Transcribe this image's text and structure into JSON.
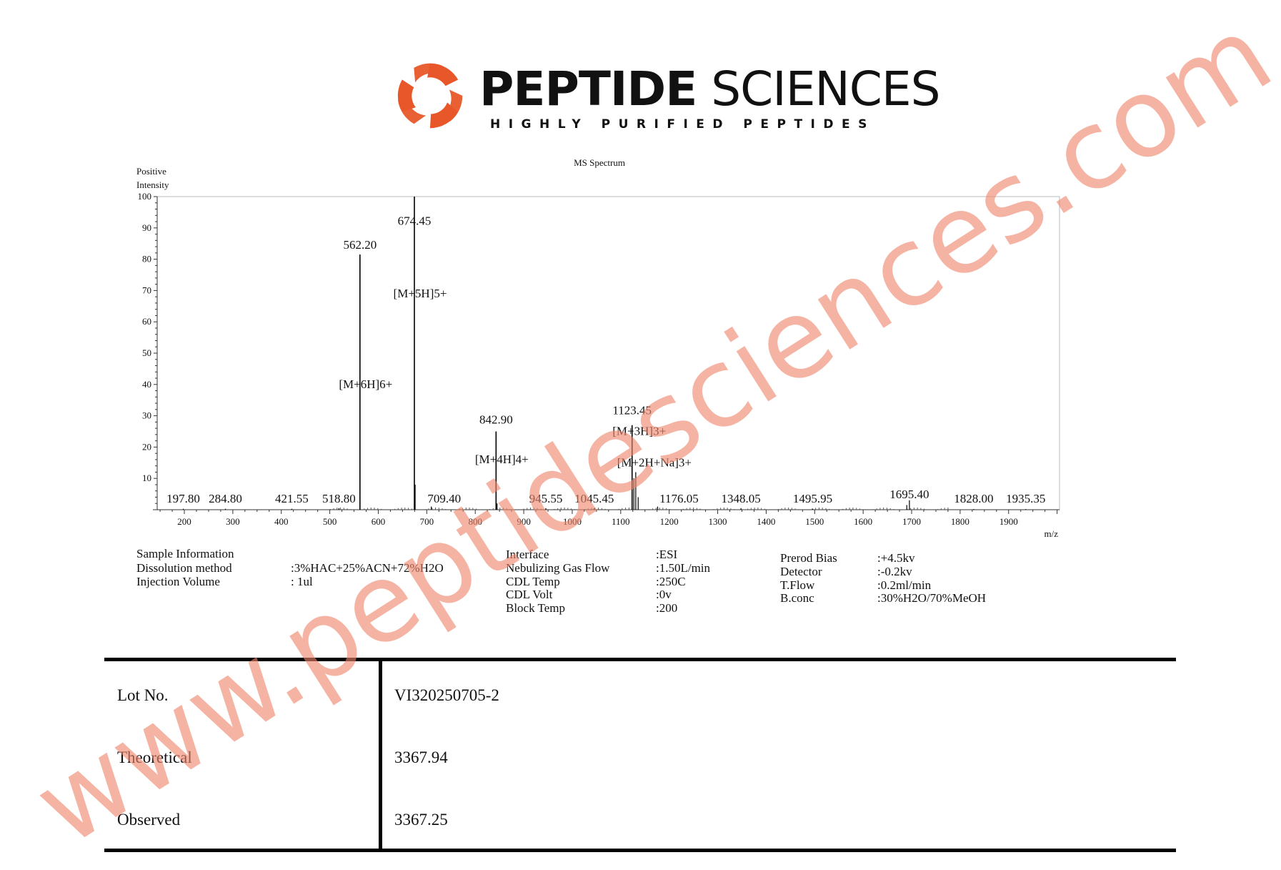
{
  "header": {
    "brand_bold": "PEPTIDE",
    "brand_light": "SCIENCES",
    "tagline": "HIGHLY PURIFIED PEPTIDES",
    "logo_color": "#e8572a"
  },
  "chart_data": {
    "type": "bar",
    "title": "MS Spectrum",
    "ylabel": [
      "Positive",
      "Intensity"
    ],
    "xlabel": "m/z",
    "xlim": [
      144,
      2005
    ],
    "ylim": [
      0,
      100
    ],
    "xticks": [
      200,
      300,
      400,
      500,
      600,
      700,
      800,
      900,
      1000,
      1100,
      1200,
      1300,
      1400,
      1500,
      1600,
      1700,
      1800,
      1900
    ],
    "yticks": [
      10,
      20,
      30,
      40,
      50,
      60,
      70,
      80,
      90,
      100
    ],
    "grid": false,
    "peaks": [
      {
        "mz": 197.8,
        "intensity": 0.3,
        "label": "197.80"
      },
      {
        "mz": 284.8,
        "intensity": 0.3,
        "label": "284.80"
      },
      {
        "mz": 421.55,
        "intensity": 0.3,
        "label": "421.55"
      },
      {
        "mz": 518.8,
        "intensity": 0.5,
        "label": "518.80"
      },
      {
        "mz": 562.2,
        "intensity": 81.5,
        "label": "562.20",
        "ion": "[M+6H]6+",
        "ion_y": 40
      },
      {
        "mz": 674.45,
        "intensity": 100,
        "label": "674.45",
        "ion": "[M+5H]5+",
        "ion_y": 69
      },
      {
        "mz": 676.0,
        "intensity": 8
      },
      {
        "mz": 709.4,
        "intensity": 1,
        "label": "709.40"
      },
      {
        "mz": 842.9,
        "intensity": 25,
        "label": "842.90",
        "ion": "[M+4H]4+",
        "ion_y": 16
      },
      {
        "mz": 845.0,
        "intensity": 2
      },
      {
        "mz": 945.55,
        "intensity": 0.5,
        "label": "945.55"
      },
      {
        "mz": 1045.45,
        "intensity": 0.5,
        "label": "1045.45"
      },
      {
        "mz": 1123.45,
        "intensity": 27,
        "label": "1123.45",
        "ion": "[M+3H]3+",
        "ion_y": 25
      },
      {
        "mz": 1131.0,
        "intensity": 12,
        "ion": "[M+2H+Na]3+",
        "ion_y": 15
      },
      {
        "mz": 1127.0,
        "intensity": 10
      },
      {
        "mz": 1136.0,
        "intensity": 4
      },
      {
        "mz": 1176.05,
        "intensity": 1,
        "label": "1176.05"
      },
      {
        "mz": 1348.05,
        "intensity": 0.5,
        "label": "1348.05"
      },
      {
        "mz": 1495.95,
        "intensity": 0.3,
        "label": "1495.95"
      },
      {
        "mz": 1695.4,
        "intensity": 3,
        "label": "1695.40"
      },
      {
        "mz": 1690.0,
        "intensity": 1.5
      },
      {
        "mz": 1828.0,
        "intensity": 0.2,
        "label": "1828.00"
      },
      {
        "mz": 1935.35,
        "intensity": 0.2,
        "label": "1935.35"
      }
    ]
  },
  "instrument": {
    "col1": [
      {
        "label": "Sample Information",
        "value": ""
      },
      {
        "label": "Dissolution method",
        "value": ":3%HAC+25%ACN+72%H2O"
      },
      {
        "label": "Injection Volume",
        "value": ": 1ul"
      }
    ],
    "col2": [
      {
        "label": "Interface",
        "value": ":ESI"
      },
      {
        "label": "Nebulizing Gas Flow",
        "value": ":1.50L/min"
      },
      {
        "label": "CDL Temp",
        "value": ":250C"
      },
      {
        "label": "CDL Volt",
        "value": ":0v"
      },
      {
        "label": "Block Temp",
        "value": ":200"
      }
    ],
    "col3": [
      {
        "label": "Prerod Bias",
        "value": ":+4.5kv"
      },
      {
        "label": "Detector",
        "value": ":-0.2kv"
      },
      {
        "label": "T.Flow",
        "value": ":0.2ml/min"
      },
      {
        "label": "B.conc",
        "value": ":30%H2O/70%MeOH"
      }
    ]
  },
  "results": [
    {
      "label": "Lot No.",
      "value": "VI320250705-2"
    },
    {
      "label": "Theoretical",
      "value": "3367.94"
    },
    {
      "label": "Observed",
      "value": "3367.25"
    }
  ],
  "watermark": "www.peptidesciences.com"
}
